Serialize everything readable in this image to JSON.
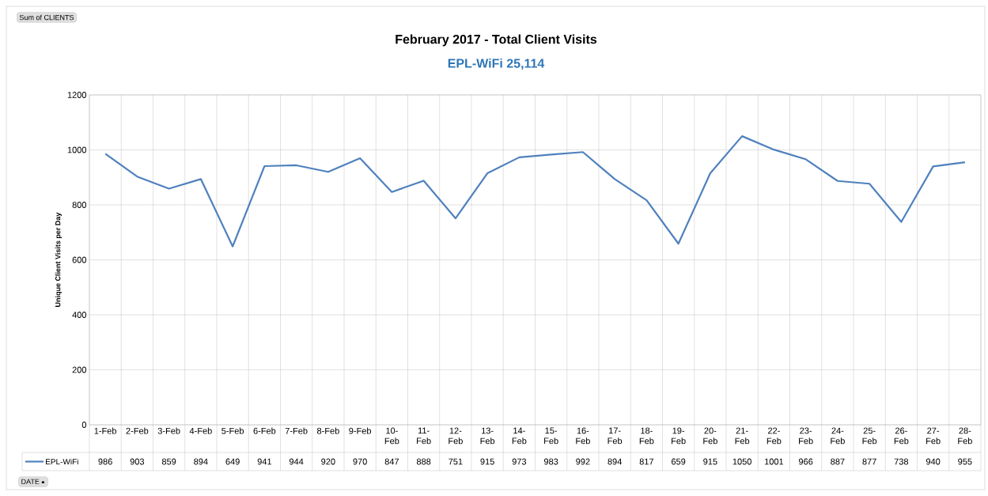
{
  "chart_data": {
    "type": "line",
    "title": "February 2017 - Total Client Visits",
    "subtitle": "EPL-WiFi  25,114",
    "ylabel": "Unique Client Visits per Day",
    "categories": [
      "1-Feb",
      "2-Feb",
      "3-Feb",
      "4-Feb",
      "5-Feb",
      "6-Feb",
      "7-Feb",
      "8-Feb",
      "9-Feb",
      "10-Feb",
      "11-Feb",
      "12-Feb",
      "13-Feb",
      "14-Feb",
      "15-Feb",
      "16-Feb",
      "17-Feb",
      "18-Feb",
      "19-Feb",
      "20-Feb",
      "21-Feb",
      "22-Feb",
      "23-Feb",
      "24-Feb",
      "25-Feb",
      "26-Feb",
      "27-Feb",
      "28-Feb"
    ],
    "series": [
      {
        "name": "EPL-WiFi",
        "color": "#4f81bd",
        "values": [
          986,
          903,
          859,
          894,
          649,
          941,
          944,
          920,
          970,
          847,
          888,
          751,
          915,
          973,
          983,
          992,
          894,
          817,
          659,
          915,
          1050,
          1001,
          966,
          887,
          877,
          738,
          940,
          955
        ],
        "value_labels": [
          "986",
          "903",
          "859",
          "894",
          "649",
          "941",
          "944",
          "920",
          "970",
          "847",
          "888",
          "751",
          "915",
          "973",
          "983",
          "992",
          "894",
          "817",
          "659",
          "915",
          "1050",
          "1001",
          "966",
          "887",
          "877",
          "738",
          "940",
          "955"
        ]
      }
    ],
    "ylim": [
      0,
      1200
    ],
    "yticks": [
      0,
      200,
      400,
      600,
      800,
      1000,
      1200
    ],
    "grid": true,
    "legend": "bottom",
    "annotations": [
      "Sum of CLIENTS",
      "DATE"
    ]
  }
}
